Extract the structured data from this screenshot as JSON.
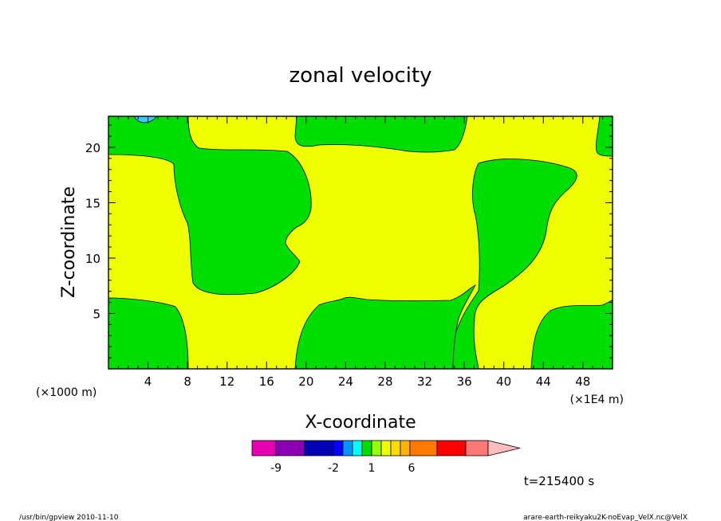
{
  "chart_data": {
    "type": "heatmap",
    "title": "zonal velocity",
    "xlabel": "X-coordinate",
    "ylabel": "Z-coordinate",
    "x_unit_left": "(×1000 m)",
    "x_unit_right": "(×1E4 m)",
    "xlim": [
      0,
      51
    ],
    "ylim": [
      0,
      22.8
    ],
    "x_ticks": [
      "4",
      "8",
      "12",
      "16",
      "20",
      "24",
      "28",
      "32",
      "36",
      "40",
      "44",
      "48"
    ],
    "y_ticks": [
      "5",
      "10",
      "15",
      "20"
    ],
    "regions": [
      {
        "level": "positive_small",
        "color": "#f0ff00",
        "note": "background field"
      },
      {
        "level": "near_zero",
        "color": "#00dd00"
      },
      {
        "level": "negative_small",
        "color": "#33ccff"
      }
    ],
    "colorbar": {
      "colors": [
        "#e600b4",
        "#8c00b4",
        "#0000b4",
        "#0000ff",
        "#0096ff",
        "#00ffff",
        "#00dd00",
        "#96ff00",
        "#f0ff00",
        "#ffdc00",
        "#ffb400",
        "#ff7800",
        "#ff0000",
        "#ff7878",
        "#ffbebe"
      ],
      "labels": [
        "-9",
        "-2",
        "1",
        "6"
      ]
    },
    "time_label": "t=215400 s"
  },
  "footer": {
    "left": "/usr/bin/gpview  2010-11-10",
    "right": "arare-earth-reikyaku2K-noEvap_VelX.nc@VelX"
  }
}
